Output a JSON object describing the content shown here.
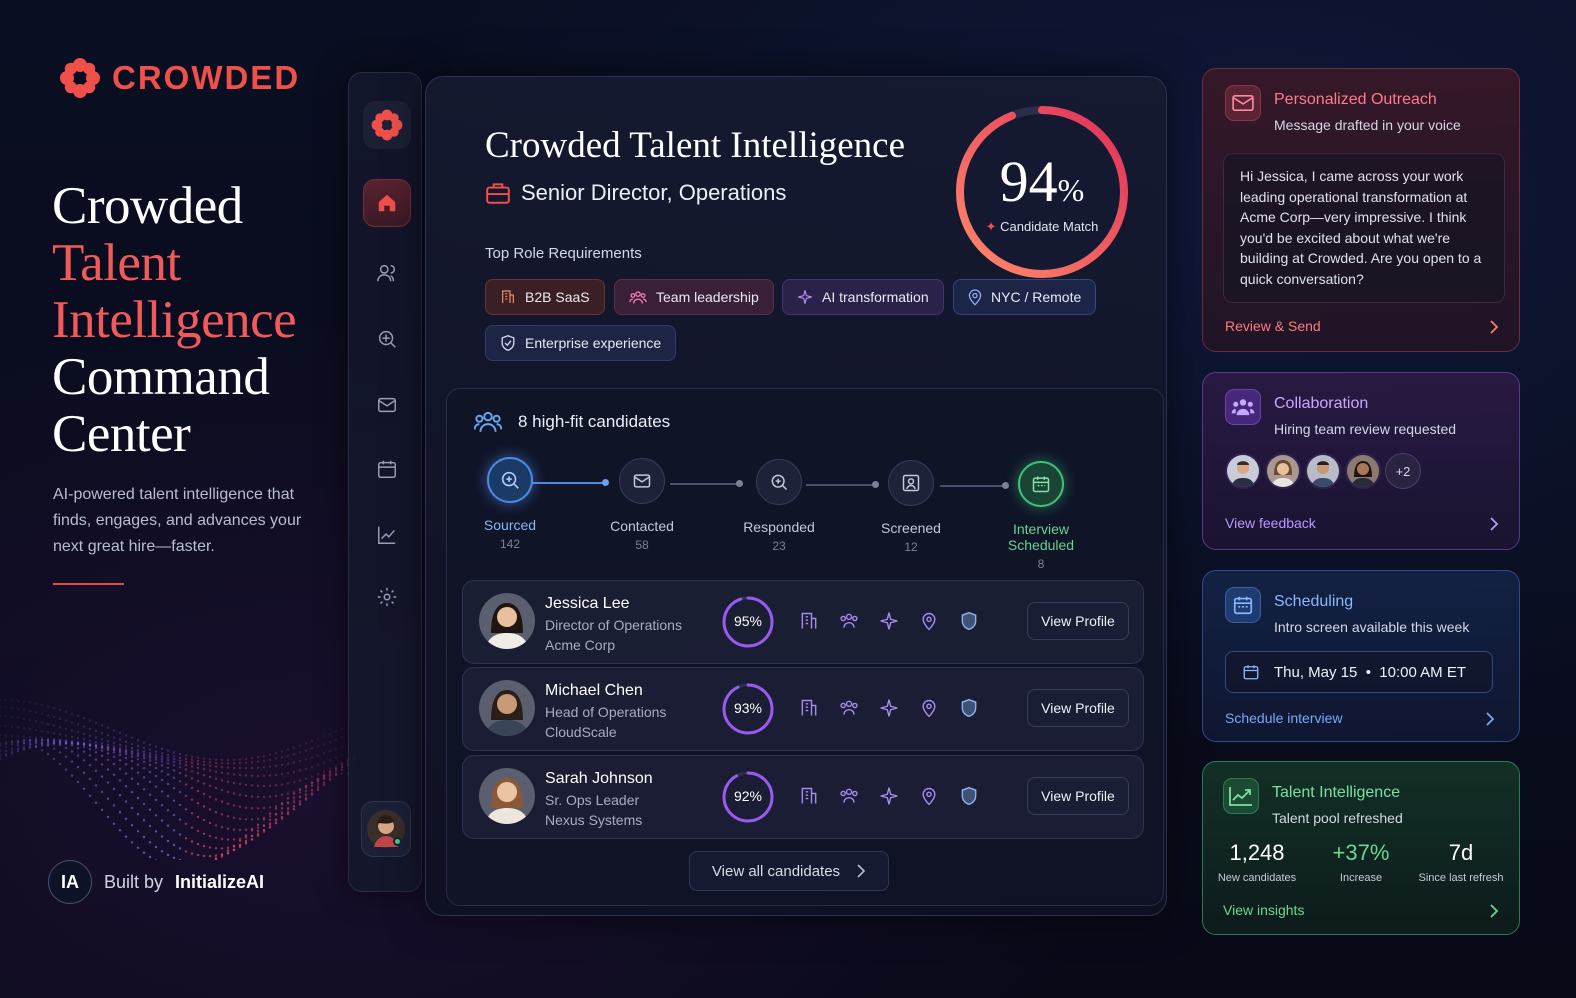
{
  "brand": {
    "name": "CROWDED",
    "accent": "#f0504a"
  },
  "hero": {
    "line1": "Crowded",
    "line2": "Talent",
    "line3": "Intelligence",
    "line4": "Command",
    "line5": "Center",
    "subtitle": "AI-powered talent intelligence that finds, engages, and advances your next great hire—faster."
  },
  "built": {
    "badge": "IA",
    "prefix": "Built by",
    "company": "InitializeAI"
  },
  "sidebar": {
    "items": [
      {
        "icon": "home-icon"
      },
      {
        "icon": "users-icon"
      },
      {
        "icon": "search-target-icon"
      },
      {
        "icon": "mail-icon"
      },
      {
        "icon": "calendar-icon"
      },
      {
        "icon": "chart-icon"
      },
      {
        "icon": "gear-icon"
      }
    ]
  },
  "main": {
    "title": "Crowded Talent Intelligence",
    "role": "Senior Director, Operations",
    "requirements_label": "Top Role Requirements",
    "requirements": [
      "B2B SaaS",
      "Team leadership",
      "AI transformation",
      "NYC / Remote",
      "Enterprise experience"
    ],
    "match": {
      "value": "94",
      "unit": "%",
      "label": "Candidate Match",
      "fraction": 0.94
    },
    "candidates_header": "8 high-fit candidates",
    "pipeline": [
      {
        "label": "Sourced",
        "count": "142"
      },
      {
        "label": "Contacted",
        "count": "58"
      },
      {
        "label": "Responded",
        "count": "23"
      },
      {
        "label": "Screened",
        "count": "12"
      },
      {
        "label": "Interview Scheduled",
        "count": "8"
      }
    ],
    "candidates": [
      {
        "name": "Jessica Lee",
        "title": "Director of Operations",
        "company": "Acme Corp",
        "match": "95%",
        "fraction": 0.95,
        "action": "View Profile"
      },
      {
        "name": "Michael Chen",
        "title": "Head of Operations",
        "company": "CloudScale",
        "match": "93%",
        "fraction": 0.93,
        "action": "View Profile"
      },
      {
        "name": "Sarah Johnson",
        "title": "Sr. Ops Leader",
        "company": "Nexus Systems",
        "match": "92%",
        "fraction": 0.92,
        "action": "View Profile"
      }
    ],
    "view_all": "View all candidates"
  },
  "outreach": {
    "title": "Personalized Outreach",
    "subtitle": "Message drafted in your voice",
    "message": "Hi Jessica, I came across your work leading operational transformation at Acme Corp—very impressive. I think you'd be excited about what we're building at Crowded. Are you open to a quick conversation?",
    "action": "Review & Send"
  },
  "collab": {
    "title": "Collaboration",
    "subtitle": "Hiring team review requested",
    "more": "+2",
    "action": "View feedback"
  },
  "sched": {
    "title": "Scheduling",
    "subtitle": "Intro screen available this week",
    "slot": "Thu, May 15  •  10:00 AM ET",
    "action": "Schedule interview"
  },
  "insights": {
    "title": "Talent Intelligence",
    "subtitle": "Talent pool refreshed",
    "stats": [
      {
        "value": "1,248",
        "label": "New candidates"
      },
      {
        "value": "+37%",
        "label": "Increase"
      },
      {
        "value": "7d",
        "label": "Since last refresh"
      }
    ],
    "action": "View insights"
  }
}
